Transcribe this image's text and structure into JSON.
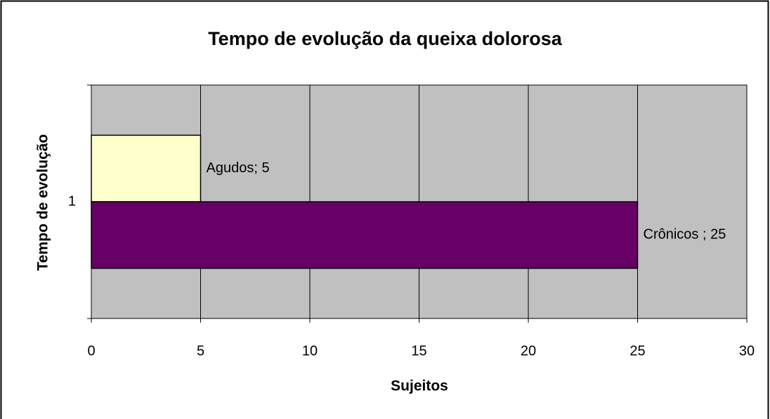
{
  "chart_data": {
    "type": "bar",
    "orientation": "horizontal",
    "title": "Tempo de evolução da queixa dolorosa",
    "x_label": "Sujeitos",
    "y_label": "Tempo de evolução",
    "categories": [
      "1"
    ],
    "series": [
      {
        "name": "Agudos",
        "color": "#FFFFCC",
        "values": [
          5
        ],
        "value_labels": [
          "Agudos; 5"
        ]
      },
      {
        "name": "Crônicos",
        "color": "#660066",
        "values": [
          25
        ],
        "value_labels": [
          "Crônicos ; 25"
        ]
      }
    ],
    "xlim": [
      0,
      30
    ],
    "xticks": [
      0,
      5,
      10,
      15,
      20,
      25,
      30
    ],
    "grid": true
  }
}
